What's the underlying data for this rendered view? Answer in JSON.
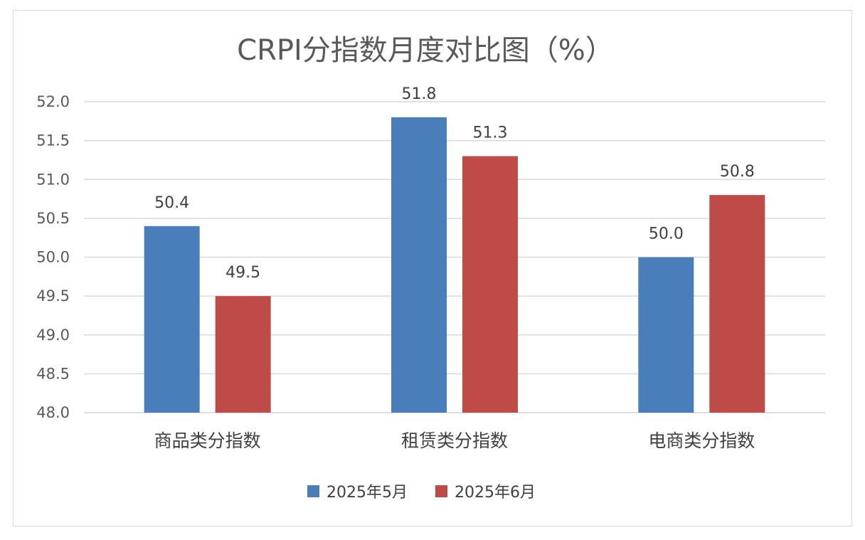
{
  "chart_data": {
    "type": "bar",
    "title": "CRPI分指数月度对比图（%）",
    "categories": [
      "商品类分指数",
      "租赁类分指数",
      "电商类分指数"
    ],
    "series": [
      {
        "name": "2025年5月",
        "values": [
          50.4,
          51.8,
          50.0
        ],
        "color": "#4a7ebb"
      },
      {
        "name": "2025年6月",
        "values": [
          49.5,
          51.3,
          50.8
        ],
        "color": "#be4b48"
      }
    ],
    "ylim": [
      48.0,
      52.0
    ],
    "yticks": [
      "48.0",
      "48.5",
      "49.0",
      "49.5",
      "50.0",
      "50.5",
      "51.0",
      "51.5",
      "52.0"
    ],
    "grid": true,
    "legend_position": "bottom",
    "xlabel": "",
    "ylabel": ""
  }
}
